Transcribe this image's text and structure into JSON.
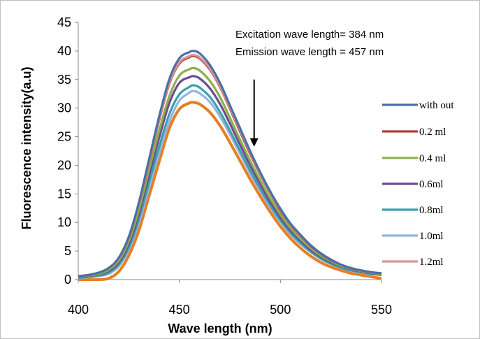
{
  "chart_data": {
    "type": "line",
    "title": "",
    "xlabel": "Wave length  (nm)",
    "ylabel": "Fluorescence intensity(a.u)",
    "xlim": [
      400,
      550
    ],
    "ylim": [
      0,
      45
    ],
    "xticks": [
      400,
      450,
      500,
      550
    ],
    "yticks": [
      0,
      5,
      10,
      15,
      20,
      25,
      30,
      35,
      40,
      45
    ],
    "grid": false,
    "legend_position": "right",
    "annotations": [
      "Excitation wave length= 384 nm",
      "Emission  wave length = 457 nm"
    ],
    "arrow": {
      "x": 487,
      "y_from": 35,
      "y_to": 23.5
    },
    "x": [
      400,
      405,
      410,
      415,
      420,
      425,
      430,
      435,
      440,
      445,
      450,
      455,
      457,
      460,
      465,
      470,
      475,
      480,
      485,
      490,
      495,
      500,
      505,
      510,
      515,
      520,
      525,
      530,
      535,
      540,
      545,
      550
    ],
    "series": [
      {
        "name": "with out",
        "color": "#4a6fa5",
        "values": [
          0.6,
          0.8,
          1.2,
          2.0,
          3.8,
          7.5,
          13.5,
          21.0,
          28.5,
          35.0,
          38.7,
          39.8,
          40.0,
          39.6,
          37.6,
          34.5,
          30.5,
          26.5,
          22.5,
          18.8,
          15.4,
          12.4,
          9.8,
          7.8,
          6.0,
          4.6,
          3.5,
          2.6,
          2.0,
          1.6,
          1.3,
          1.1
        ]
      },
      {
        "name": "0.2 ml",
        "color": "#b0413e",
        "values": [
          0.6,
          0.8,
          1.2,
          2.0,
          3.7,
          7.3,
          13.2,
          20.5,
          27.8,
          34.2,
          37.8,
          38.9,
          39.1,
          38.7,
          36.8,
          33.8,
          29.9,
          25.9,
          22.0,
          18.4,
          15.1,
          12.1,
          9.6,
          7.6,
          5.9,
          4.5,
          3.4,
          2.6,
          2.0,
          1.6,
          1.3,
          1.1
        ]
      },
      {
        "name": "0.4 ml",
        "color": "#8db04a",
        "values": [
          0.5,
          0.7,
          1.0,
          1.7,
          3.3,
          6.7,
          12.2,
          19.2,
          26.0,
          32.0,
          35.7,
          36.8,
          37.0,
          36.6,
          34.8,
          32.0,
          28.3,
          24.5,
          20.8,
          17.4,
          14.2,
          11.4,
          9.0,
          7.1,
          5.5,
          4.2,
          3.2,
          2.4,
          1.9,
          1.5,
          1.2,
          1.0
        ]
      },
      {
        "name": "0.6ml",
        "color": "#6a4c93",
        "values": [
          0.4,
          0.6,
          0.9,
          1.5,
          3.0,
          6.2,
          11.5,
          18.2,
          24.8,
          30.8,
          34.4,
          35.4,
          35.6,
          35.2,
          33.5,
          30.8,
          27.3,
          23.6,
          20.0,
          16.7,
          13.6,
          10.9,
          8.6,
          6.8,
          5.2,
          4.0,
          3.0,
          2.3,
          1.8,
          1.4,
          1.1,
          0.9
        ]
      },
      {
        "name": "0.8ml",
        "color": "#3b9fae",
        "values": [
          0.3,
          0.5,
          0.7,
          1.2,
          2.6,
          5.6,
          10.6,
          17.0,
          23.2,
          28.9,
          32.4,
          33.7,
          34.0,
          33.6,
          32.0,
          29.4,
          26.1,
          22.6,
          19.1,
          15.9,
          13.0,
          10.4,
          8.2,
          6.4,
          4.9,
          3.7,
          2.8,
          2.1,
          1.6,
          1.3,
          1.0,
          0.8
        ]
      },
      {
        "name": "1.0ml",
        "color": "#98b3de",
        "values": [
          0.3,
          0.4,
          0.6,
          1.0,
          2.3,
          5.2,
          9.9,
          16.0,
          22.0,
          27.6,
          31.3,
          32.7,
          33.0,
          32.6,
          31.1,
          28.6,
          25.4,
          22.0,
          18.6,
          15.5,
          12.6,
          10.1,
          7.9,
          6.2,
          4.8,
          3.6,
          2.7,
          2.0,
          1.6,
          1.2,
          1.0,
          0.8
        ]
      },
      {
        "name": "1.2ml",
        "color": "#d99694",
        "values": [
          0.6,
          0.8,
          1.2,
          2.0,
          3.7,
          7.4,
          13.3,
          20.7,
          28.0,
          34.4,
          38.0,
          39.1,
          39.3,
          38.9,
          37.0,
          34.0,
          30.1,
          26.2,
          22.3,
          18.6,
          15.3,
          12.3,
          9.7,
          7.7,
          6.0,
          4.6,
          3.5,
          2.6,
          2.0,
          1.6,
          1.3,
          1.1
        ]
      },
      {
        "name": "",
        "color": "#e67e22",
        "values": [
          0.0,
          0.0,
          0.0,
          0.2,
          1.4,
          4.2,
          8.6,
          14.6,
          20.6,
          26.4,
          29.8,
          30.9,
          31.0,
          30.7,
          29.3,
          27.0,
          24.0,
          20.8,
          17.6,
          14.6,
          11.8,
          9.3,
          7.2,
          5.5,
          4.1,
          3.0,
          2.2,
          1.6,
          1.1,
          0.8,
          0.5,
          0.2
        ]
      }
    ]
  }
}
